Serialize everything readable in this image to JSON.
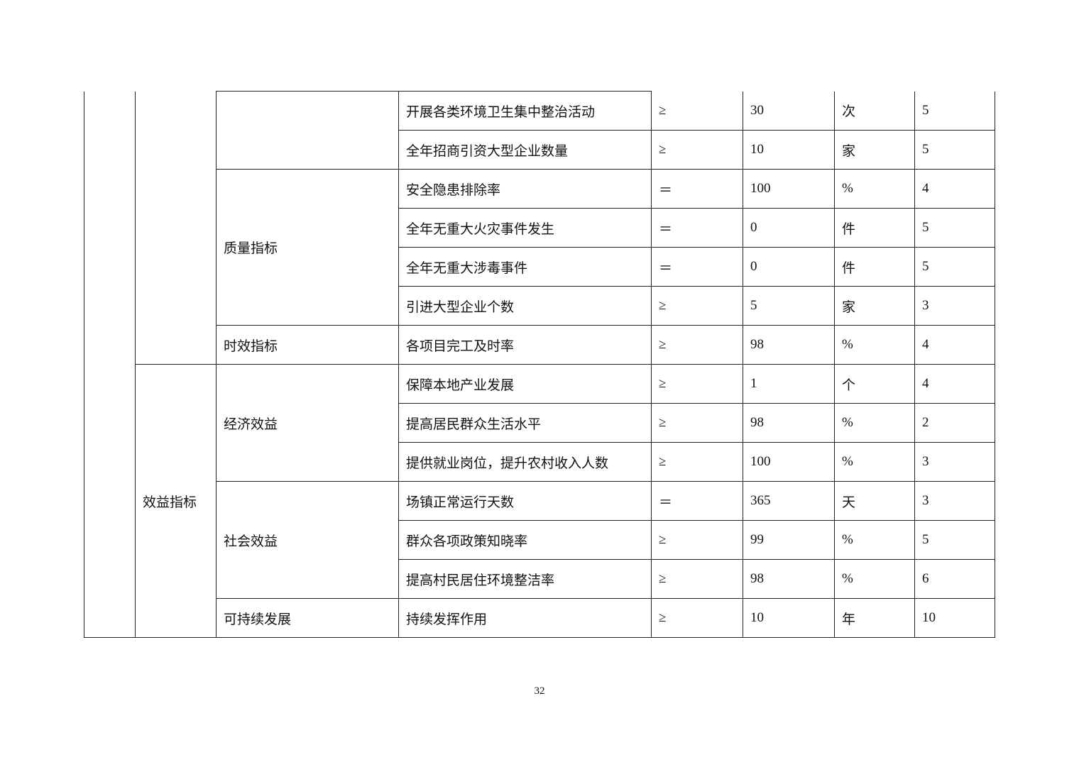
{
  "table": {
    "groups_l2": [
      "",
      "效益指标"
    ],
    "groups_l3": [
      "",
      "质量指标",
      "时效指标",
      "经济效益",
      "社会效益",
      "可持续发展"
    ],
    "rows": [
      {
        "indicator": "开展各类环境卫生集中整治活动",
        "op": "≥",
        "value": "30",
        "unit": "次",
        "score": "5"
      },
      {
        "indicator": "全年招商引资大型企业数量",
        "op": "≥",
        "value": "10",
        "unit": "家",
        "score": "5"
      },
      {
        "indicator": "安全隐患排除率",
        "op": "＝",
        "value": "100",
        "unit": "%",
        "score": "4"
      },
      {
        "indicator": "全年无重大火灾事件发生",
        "op": "＝",
        "value": "0",
        "unit": "件",
        "score": "5"
      },
      {
        "indicator": "全年无重大涉毒事件",
        "op": "＝",
        "value": "0",
        "unit": "件",
        "score": "5"
      },
      {
        "indicator": "引进大型企业个数",
        "op": "≥",
        "value": "5",
        "unit": "家",
        "score": "3"
      },
      {
        "indicator": "各项目完工及时率",
        "op": "≥",
        "value": "98",
        "unit": "%",
        "score": "4"
      },
      {
        "indicator": "保障本地产业发展",
        "op": "≥",
        "value": "1",
        "unit": "个",
        "score": "4"
      },
      {
        "indicator": "提高居民群众生活水平",
        "op": "≥",
        "value": "98",
        "unit": "%",
        "score": "2"
      },
      {
        "indicator": "提供就业岗位，提升农村收入人数",
        "op": "≥",
        "value": "100",
        "unit": "%",
        "score": "3"
      },
      {
        "indicator": "场镇正常运行天数",
        "op": "＝",
        "value": "365",
        "unit": "天",
        "score": "3"
      },
      {
        "indicator": "群众各项政策知晓率",
        "op": "≥",
        "value": "99",
        "unit": "%",
        "score": "5"
      },
      {
        "indicator": "提高村民居住环境整洁率",
        "op": "≥",
        "value": "98",
        "unit": "%",
        "score": "6"
      },
      {
        "indicator": "持续发挥作用",
        "op": "≥",
        "value": "10",
        "unit": "年",
        "score": "10"
      }
    ]
  },
  "page_number": "32"
}
